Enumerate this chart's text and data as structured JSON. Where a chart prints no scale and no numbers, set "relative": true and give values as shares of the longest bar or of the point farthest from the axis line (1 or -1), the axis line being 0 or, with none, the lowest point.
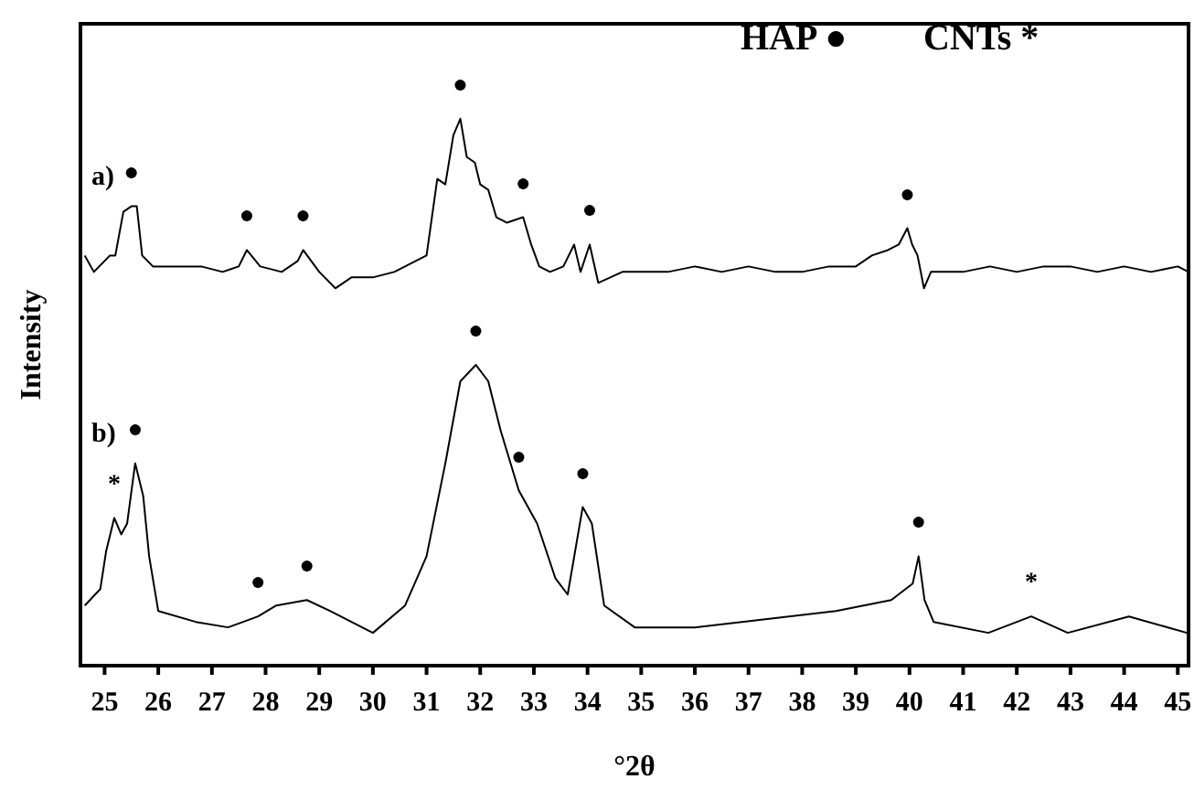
{
  "chart_data": {
    "type": "line",
    "relative": true,
    "xlabel": "°2θ",
    "ylabel": "Intensity",
    "xlim": [
      24.55,
      45.2
    ],
    "xticks": [
      25,
      26,
      27,
      28,
      29,
      30,
      31,
      32,
      33,
      34,
      35,
      36,
      37,
      38,
      39,
      40,
      41,
      42,
      43,
      44,
      45
    ],
    "legend": false,
    "grid": false,
    "series": [
      {
        "name": "a)",
        "color": "#000000",
        "x": [
          24.63,
          24.8,
          25.1,
          25.2,
          25.35,
          25.5,
          25.6,
          25.7,
          25.9,
          26.3,
          26.8,
          27.2,
          27.5,
          27.65,
          27.9,
          28.3,
          28.6,
          28.7,
          29.0,
          29.3,
          29.6,
          30.0,
          30.4,
          30.8,
          31.0,
          31.2,
          31.35,
          31.5,
          31.63,
          31.75,
          31.9,
          32.0,
          32.15,
          32.3,
          32.5,
          32.8,
          32.95,
          33.1,
          33.3,
          33.55,
          33.75,
          33.87,
          34.04,
          34.2,
          34.65,
          35.0,
          35.5,
          36,
          36.5,
          37,
          37.5,
          38,
          38.5,
          39,
          39.3,
          39.6,
          39.8,
          39.96,
          40.05,
          40.15,
          40.27,
          40.4,
          41,
          41.5,
          42,
          42.5,
          43,
          43.5,
          44,
          44.5,
          45,
          45.2
        ],
        "values": [
          0.75,
          0.72,
          0.75,
          0.75,
          0.83,
          0.84,
          0.84,
          0.75,
          0.73,
          0.73,
          0.73,
          0.72,
          0.73,
          0.76,
          0.73,
          0.72,
          0.74,
          0.76,
          0.72,
          0.69,
          0.71,
          0.71,
          0.72,
          0.74,
          0.75,
          0.89,
          0.88,
          0.97,
          1.0,
          0.93,
          0.92,
          0.88,
          0.87,
          0.82,
          0.81,
          0.82,
          0.77,
          0.73,
          0.72,
          0.73,
          0.77,
          0.72,
          0.77,
          0.7,
          0.72,
          0.72,
          0.72,
          0.73,
          0.72,
          0.73,
          0.72,
          0.72,
          0.73,
          0.73,
          0.75,
          0.76,
          0.77,
          0.8,
          0.77,
          0.75,
          0.69,
          0.72,
          0.72,
          0.73,
          0.72,
          0.73,
          0.73,
          0.72,
          0.73,
          0.72,
          0.73,
          0.72
        ]
      },
      {
        "name": "b)",
        "color": "#000000",
        "x": [
          24.63,
          24.92,
          25.03,
          25.18,
          25.31,
          25.42,
          25.57,
          25.72,
          25.83,
          26.0,
          26.7,
          27.3,
          27.86,
          28.2,
          28.77,
          29.2,
          30.0,
          30.6,
          31.0,
          31.35,
          31.63,
          31.92,
          32.15,
          32.38,
          32.72,
          33.06,
          33.4,
          33.63,
          33.91,
          34.08,
          34.31,
          34.88,
          36.0,
          38.63,
          39.66,
          40.06,
          40.17,
          40.28,
          40.45,
          41.47,
          42.27,
          42.95,
          44.09,
          45.17
        ],
        "values": [
          0.11,
          0.14,
          0.21,
          0.27,
          0.24,
          0.26,
          0.37,
          0.31,
          0.2,
          0.1,
          0.08,
          0.07,
          0.09,
          0.11,
          0.12,
          0.1,
          0.06,
          0.11,
          0.2,
          0.37,
          0.52,
          0.55,
          0.52,
          0.43,
          0.32,
          0.26,
          0.16,
          0.13,
          0.29,
          0.26,
          0.11,
          0.07,
          0.07,
          0.1,
          0.12,
          0.15,
          0.2,
          0.12,
          0.08,
          0.06,
          0.09,
          0.06,
          0.09,
          0.06
        ]
      }
    ],
    "annotations": [
      "HAP ●",
      "CNTs *",
      {
        "text": "●",
        "x": 25.5,
        "y": 0.84
      },
      {
        "text": "●",
        "x": 27.65,
        "y": 0.76
      },
      {
        "text": "●",
        "x": 28.7,
        "y": 0.76
      },
      {
        "text": "●",
        "x": 31.63,
        "y": 1.0
      },
      {
        "text": "●",
        "x": 32.8,
        "y": 0.82
      },
      {
        "text": "●",
        "x": 34.04,
        "y": 0.77
      },
      {
        "text": "●",
        "x": 39.96,
        "y": 0.8
      },
      {
        "text": "*",
        "x": 25.18,
        "y": 0.27
      },
      {
        "text": "●",
        "x": 25.57,
        "y": 0.37
      },
      {
        "text": "●",
        "x": 27.86,
        "y": 0.09
      },
      {
        "text": "●",
        "x": 28.77,
        "y": 0.12
      },
      {
        "text": "●",
        "x": 31.92,
        "y": 0.55
      },
      {
        "text": "●",
        "x": 32.72,
        "y": 0.32
      },
      {
        "text": "●",
        "x": 33.91,
        "y": 0.29
      },
      {
        "text": "●",
        "x": 40.17,
        "y": 0.2
      },
      {
        "text": "*",
        "x": 42.27,
        "y": 0.09
      }
    ]
  }
}
